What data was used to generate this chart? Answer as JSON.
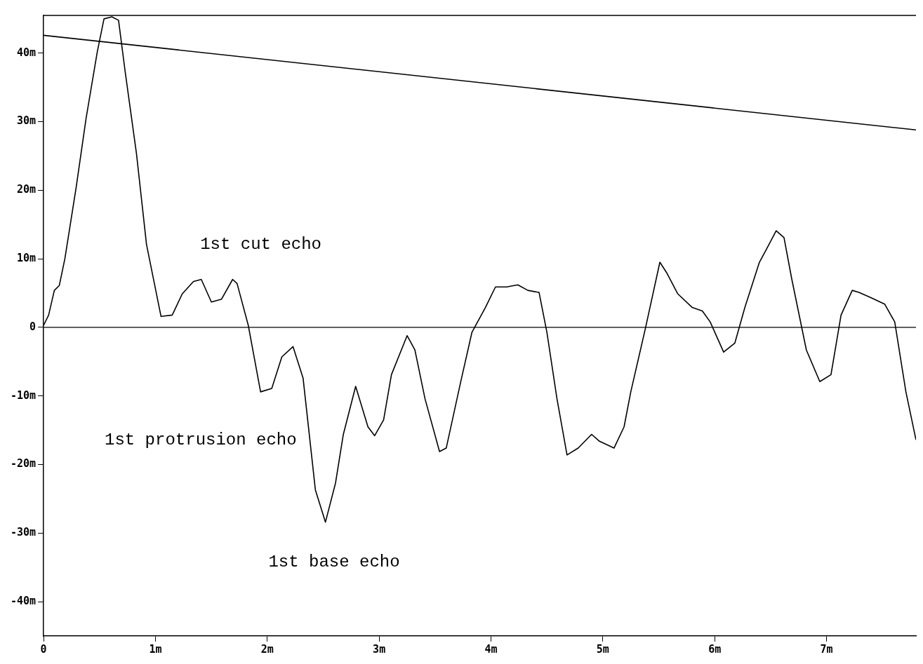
{
  "chart_data": {
    "type": "line",
    "xlim": [
      0,
      7.8
    ],
    "ylim": [
      -45,
      45.5
    ],
    "xticks": [
      0,
      {
        "value": 1,
        "label": "1m"
      },
      {
        "value": 2,
        "label": "2m"
      },
      {
        "value": 3,
        "label": "3m"
      },
      {
        "value": 4,
        "label": "4m"
      },
      {
        "value": 5,
        "label": "5m"
      },
      {
        "value": 6,
        "label": "6m"
      },
      {
        "value": 7,
        "label": "7m"
      }
    ],
    "yticks": [
      {
        "value": -40,
        "label": "-40m"
      },
      {
        "value": -30,
        "label": "-30m"
      },
      {
        "value": -20,
        "label": "-20m"
      },
      {
        "value": -10,
        "label": "-10m"
      },
      0,
      {
        "value": 10,
        "label": "10m"
      },
      {
        "value": 20,
        "label": "20m"
      },
      {
        "value": 30,
        "label": "30m"
      },
      {
        "value": 40,
        "label": "40m"
      }
    ],
    "grid": false,
    "legend": false,
    "marker": "none",
    "line_style": "solid",
    "ref_lines": [
      {
        "axis": "y",
        "value": 0,
        "color": "#000000"
      }
    ],
    "annotations": [
      "1st cut echo",
      "1st protrusion echo",
      "1st base echo"
    ],
    "series": [
      {
        "color": "#000000",
        "x": [
          0,
          0.045,
          0.096,
          0.14,
          0.19,
          0.29,
          0.38,
          0.48,
          0.54,
          0.61,
          0.67,
          0.73,
          0.83,
          0.92,
          1.05,
          1.15,
          1.24,
          1.34,
          1.41,
          1.5,
          1.59,
          1.69,
          1.73,
          1.83,
          1.94,
          2.04,
          2.13,
          2.23,
          2.32,
          2.43,
          2.52,
          2.61,
          2.68,
          2.79,
          2.9,
          2.96,
          3.04,
          3.11,
          3.25,
          3.32,
          3.41,
          3.54,
          3.6,
          3.73,
          3.83,
          3.95,
          4.04,
          4.14,
          4.24,
          4.33,
          4.43,
          4.5,
          4.59,
          4.68,
          4.78,
          4.9,
          4.97,
          5.1,
          5.19,
          5.25,
          5.38,
          5.51,
          5.57,
          5.67,
          5.8,
          5.89,
          5.96,
          6.08,
          6.18,
          6.27,
          6.4,
          6.46,
          6.55,
          6.62,
          6.69,
          6.82,
          6.94,
          7.04,
          7.13,
          7.23,
          7.29,
          7.39,
          7.52,
          7.61,
          7.71,
          7.8
        ],
        "values": [
          0.3,
          1.8,
          5.4,
          6.1,
          10,
          20.3,
          30.5,
          40.2,
          45,
          45.3,
          44.8,
          37.2,
          25.4,
          12.1,
          1.6,
          1.8,
          4.9,
          6.7,
          7,
          3.7,
          4.1,
          7,
          6.4,
          0.3,
          -9.4,
          -8.9,
          -4.3,
          -2.8,
          -7.4,
          -23.7,
          -28.4,
          -22.7,
          -15.6,
          -8.6,
          -14.5,
          -15.8,
          -13.5,
          -6.9,
          -1.2,
          -3.3,
          -10.4,
          -18.1,
          -17.6,
          -7.9,
          -0.7,
          2.9,
          5.9,
          5.9,
          6.2,
          5.4,
          5.1,
          -0.7,
          -10.4,
          -18.6,
          -17.6,
          -15.6,
          -16.6,
          -17.6,
          -14.5,
          -9.4,
          -0.2,
          9.5,
          8,
          4.9,
          2.9,
          2.4,
          0.8,
          -3.6,
          -2.3,
          2.9,
          9.5,
          11.3,
          14.1,
          13.1,
          7,
          -3.3,
          -7.9,
          -6.9,
          1.8,
          5.4,
          5.1,
          4.4,
          3.4,
          0.8,
          -9.4,
          -16.4
        ]
      },
      {
        "color": "#000000",
        "x": [
          0,
          7.8
        ],
        "values": [
          42.6,
          28.8
        ]
      }
    ]
  }
}
